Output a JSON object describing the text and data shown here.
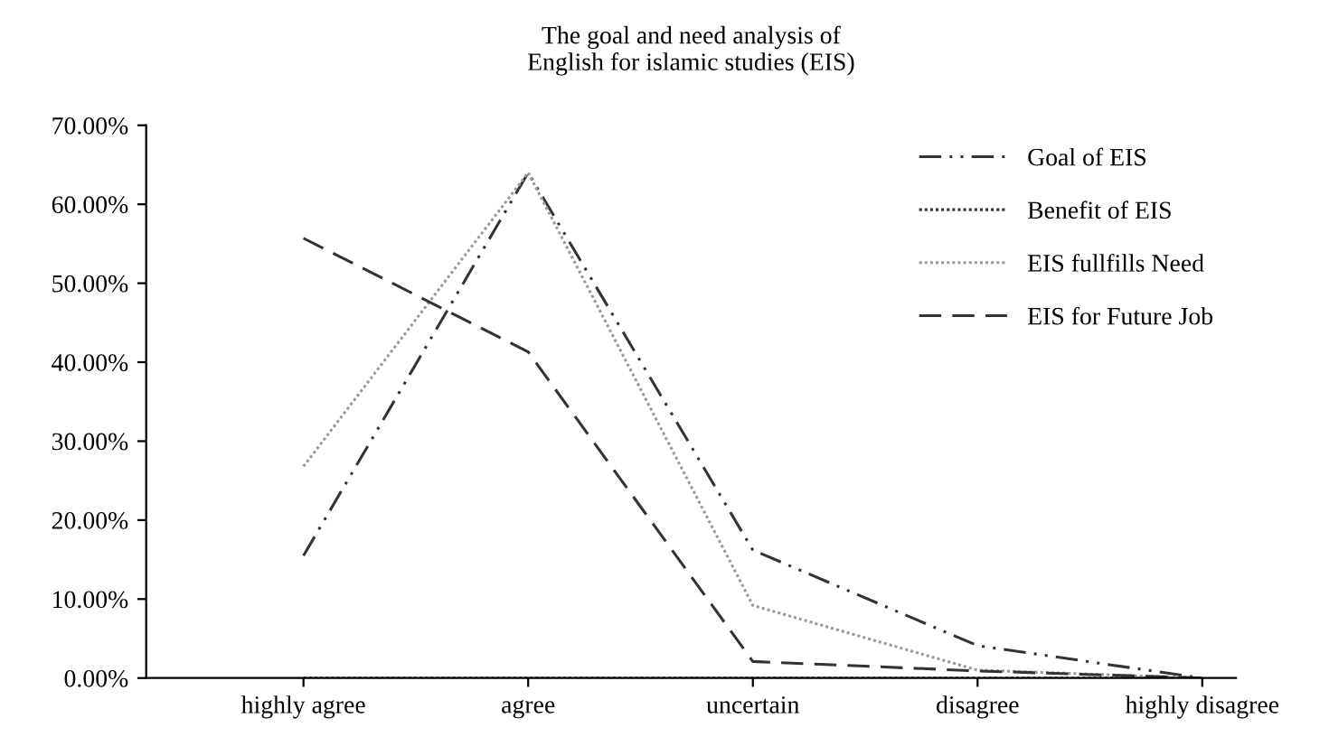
{
  "chart_data": {
    "type": "line",
    "title": "The goal and need analysis of\nEnglish for islamic studies (EIS)",
    "categories": [
      "highly agree",
      "agree",
      "uncertain",
      "disagree",
      "highly disagree"
    ],
    "series": [
      {
        "name": "Goal of EIS",
        "color": "#333333",
        "line_style": "dashdot",
        "values": [
          15.5,
          64,
          16.2,
          4.1,
          0
        ]
      },
      {
        "name": "Benefit of EIS",
        "color": "#333333",
        "line_style": "dotted",
        "values": [
          0,
          0,
          0,
          0,
          0
        ]
      },
      {
        "name": "EIS fullfills Need",
        "color": "#999999",
        "line_style": "dotted",
        "values": [
          26.8,
          64,
          9.2,
          1,
          0
        ]
      },
      {
        "name": "EIS for Future Job",
        "color": "#333333",
        "line_style": "dashed",
        "values": [
          55.7,
          41.3,
          2.1,
          0.9,
          0
        ]
      }
    ],
    "ylim": [
      0,
      70
    ],
    "yticks": [
      {
        "value": 0,
        "label": "0.00%"
      },
      {
        "value": 10,
        "label": "10.00%"
      },
      {
        "value": 20,
        "label": "20.00%"
      },
      {
        "value": 30,
        "label": "30.00%"
      },
      {
        "value": 40,
        "label": "40.00%"
      },
      {
        "value": 50,
        "label": "50.00%"
      },
      {
        "value": 60,
        "label": "60.00%"
      },
      {
        "value": 70,
        "label": "70.00%"
      }
    ],
    "grid": false,
    "legend": "top right",
    "marker": "none"
  }
}
